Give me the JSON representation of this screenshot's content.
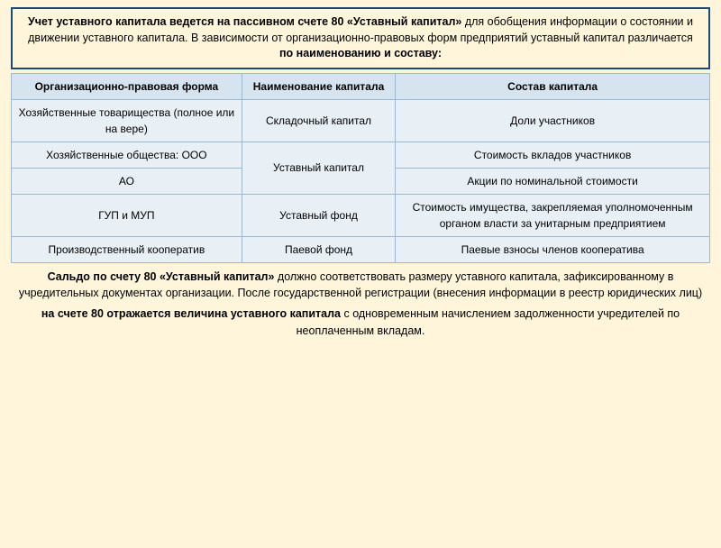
{
  "header": {
    "before_bold1": "Учет уставного капитала ведется на пассивном счете 80 «Уставный капитал»",
    "mid1": " для обобщения информации о состоянии и движении уставного капитала. В зависимости от организационно-правовых форм предприятий уставный капитал различается ",
    "bold2": "по наименованию и составу:"
  },
  "table": {
    "headers": {
      "c1": "Организационно-правовая форма",
      "c2": "Наименование капитала",
      "c3": "Состав капитала"
    },
    "rows": {
      "r1c1": "Хозяйственные товарищества (полное или на вере)",
      "r1c2": "Складочный капитал",
      "r1c3": "Доли участников",
      "r2c1": "Хозяйственные общества: ООО",
      "r2and3c2": "Уставный капитал",
      "r2c3": "Стоимость вкладов участников",
      "r3c1": "АО",
      "r3c3": "Акции по номинальной стоимости",
      "r4c1": "ГУП и МУП",
      "r4c2": "Уставный фонд",
      "r4c3": "Стоимость имущества, закрепляемая уполномоченным органом власти за унитарным предприятием",
      "r5c1": "Производственный кооператив",
      "r5c2": "Паевой фонд",
      "r5c3": "Паевые взносы членов кооператива"
    }
  },
  "footer": {
    "p1_bold": "Сальдо по счету 80 «Уставный капитал»",
    "p1_rest": " должно соответствовать размеру уставного капитала, зафиксированному в учредительных документах организации. После государственной регистрации (внесения информации в реестр юридических лиц)",
    "p2_bold": "на счете 80 отражается величина уставного капитала",
    "p2_rest": " с одновременным начислением задолженности учредителей по неоплаченным вкладам."
  },
  "styling": {
    "page_bg": "#fef5db",
    "header_border": "#1a4a7a",
    "table_header_bg": "#d6e4ef",
    "table_cell_bg": "#e8eff5",
    "table_border": "#9bb8d3",
    "body_fontsize": 12.5,
    "table_fontsize": 12
  }
}
